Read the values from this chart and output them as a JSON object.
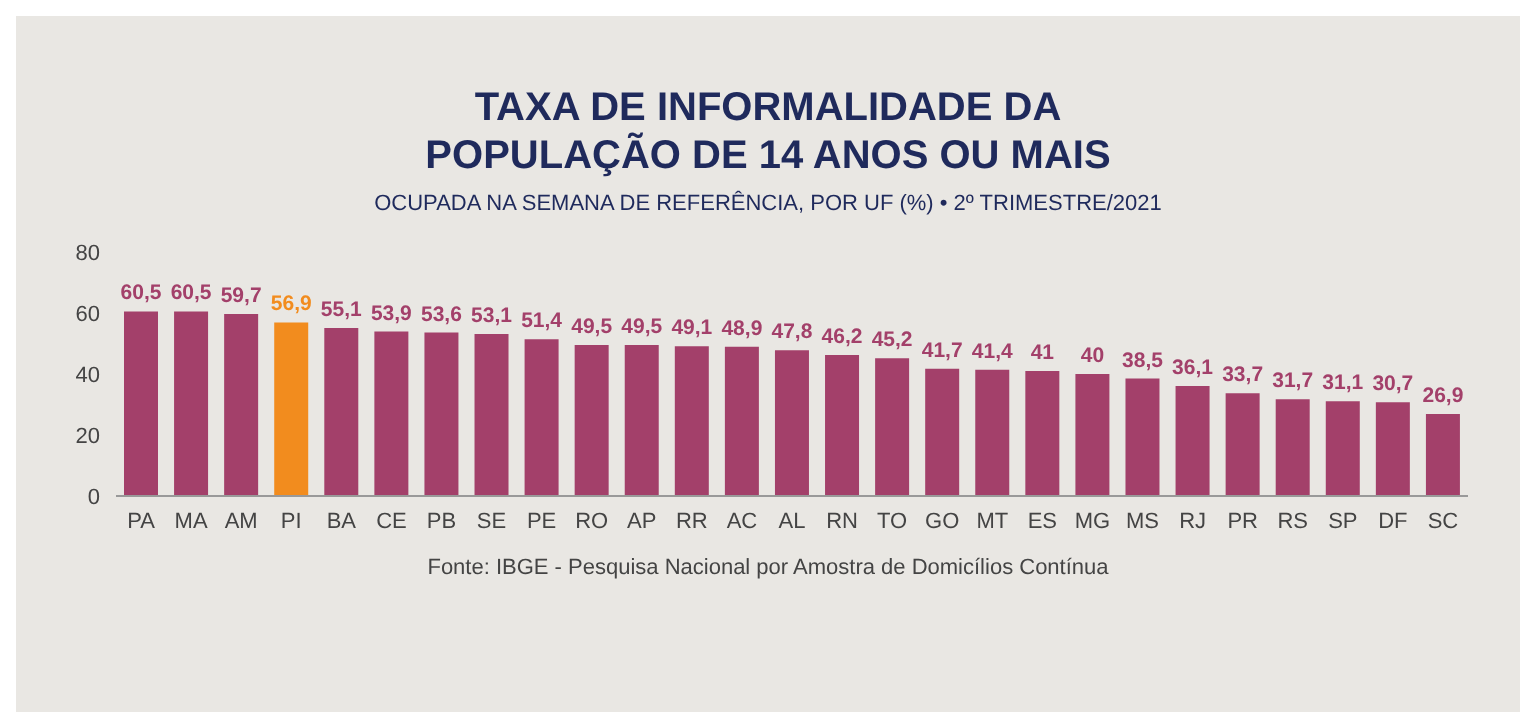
{
  "chart_data": {
    "type": "bar",
    "title": "TAXA DE INFORMALIDADE DA POPULAÇÃO DE 14 ANOS OU MAIS",
    "subtitle": "OCUPADA NA SEMANA DE REFERÊNCIA, POR UF (%) • 2º TRIMESTRE/2021",
    "categories": [
      "PA",
      "MA",
      "AM",
      "PI",
      "BA",
      "CE",
      "PB",
      "SE",
      "PE",
      "RO",
      "AP",
      "RR",
      "AC",
      "AL",
      "RN",
      "TO",
      "GO",
      "MT",
      "ES",
      "MG",
      "MS",
      "RJ",
      "PR",
      "RS",
      "SP",
      "DF",
      "SC"
    ],
    "values": [
      60.5,
      60.5,
      59.7,
      56.9,
      55.1,
      53.9,
      53.6,
      53.1,
      51.4,
      49.5,
      49.5,
      49.1,
      48.9,
      47.8,
      46.2,
      45.2,
      41.7,
      41.4,
      41,
      40,
      38.5,
      36.1,
      33.7,
      31.7,
      31.1,
      30.7,
      26.9
    ],
    "value_labels": [
      "60,5",
      "60,5",
      "59,7",
      "56,9",
      "55,1",
      "53,9",
      "53,6",
      "53,1",
      "51,4",
      "49,5",
      "49,5",
      "49,1",
      "48,9",
      "47,8",
      "46,2",
      "45,2",
      "41,7",
      "41,4",
      "41",
      "40",
      "38,5",
      "36,1",
      "33,7",
      "31,7",
      "31,1",
      "30,7",
      "26,9"
    ],
    "colors": [
      "#a3406a",
      "#a3406a",
      "#a3406a",
      "#f28c1e",
      "#a3406a",
      "#a3406a",
      "#a3406a",
      "#a3406a",
      "#a3406a",
      "#a3406a",
      "#a3406a",
      "#a3406a",
      "#a3406a",
      "#a3406a",
      "#a3406a",
      "#a3406a",
      "#a3406a",
      "#a3406a",
      "#a3406a",
      "#a3406a",
      "#a3406a",
      "#a3406a",
      "#a3406a",
      "#a3406a",
      "#a3406a",
      "#a3406a",
      "#a3406a"
    ],
    "ylim": [
      0,
      80
    ],
    "yticks": [
      0,
      20,
      40,
      60,
      80
    ],
    "annotations": [
      "Fonte: IBGE - Pesquisa Nacional por Amostra de Domicílios Contínua"
    ]
  }
}
